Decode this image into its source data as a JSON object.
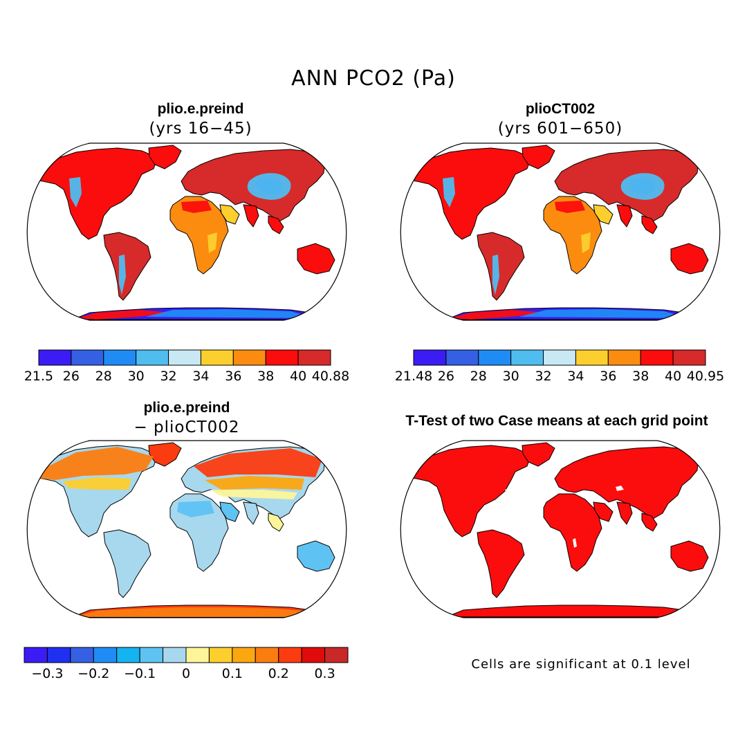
{
  "figure": {
    "title": "ANN PCO2 (Pa)"
  },
  "panels": [
    {
      "title": "plio.e.preind",
      "subtitle": "(yrs 16−45)",
      "scheme": "absolute",
      "colorbar": {
        "colors": [
          "#3b1cf5",
          "#3560e3",
          "#1f8cf5",
          "#4fbdf0",
          "#c8e8f4",
          "#fccf2e",
          "#fb8c10",
          "#fb0d0d",
          "#d72a2a"
        ],
        "labels": [
          "21.5",
          "26",
          "28",
          "30",
          "32",
          "34",
          "36",
          "38",
          "40",
          "40.88"
        ]
      }
    },
    {
      "title": "plioCT002",
      "subtitle": "(yrs 601−650)",
      "scheme": "absolute",
      "colorbar": {
        "colors": [
          "#3b1cf5",
          "#3560e3",
          "#1f8cf5",
          "#4fbdf0",
          "#c8e8f4",
          "#fccf2e",
          "#fb8c10",
          "#fb0d0d",
          "#d72a2a"
        ],
        "labels": [
          "21.48",
          "26",
          "28",
          "30",
          "32",
          "34",
          "36",
          "38",
          "40",
          "40.95"
        ]
      }
    },
    {
      "title": "plio.e.preind",
      "subtitle": "− plioCT002",
      "scheme": "difference",
      "colorbar": {
        "colors": [
          "#3b1cf5",
          "#1f30f0",
          "#3560e3",
          "#1f8cf5",
          "#14b4f0",
          "#5ec3f3",
          "#a8d8ee",
          "#fcf59a",
          "#fccf2e",
          "#fba70f",
          "#fb7d10",
          "#fb3c10",
          "#e00b0b",
          "#c82828"
        ],
        "labels": [
          "−0.3",
          "−0.2",
          "−0.1",
          "0",
          "0.1",
          "0.2",
          "0.3"
        ]
      }
    },
    {
      "title": "T-Test of two Case means at each grid point",
      "subtitle": "",
      "scheme": "significance",
      "note": "Cells are significant at 0.1 level"
    }
  ]
}
